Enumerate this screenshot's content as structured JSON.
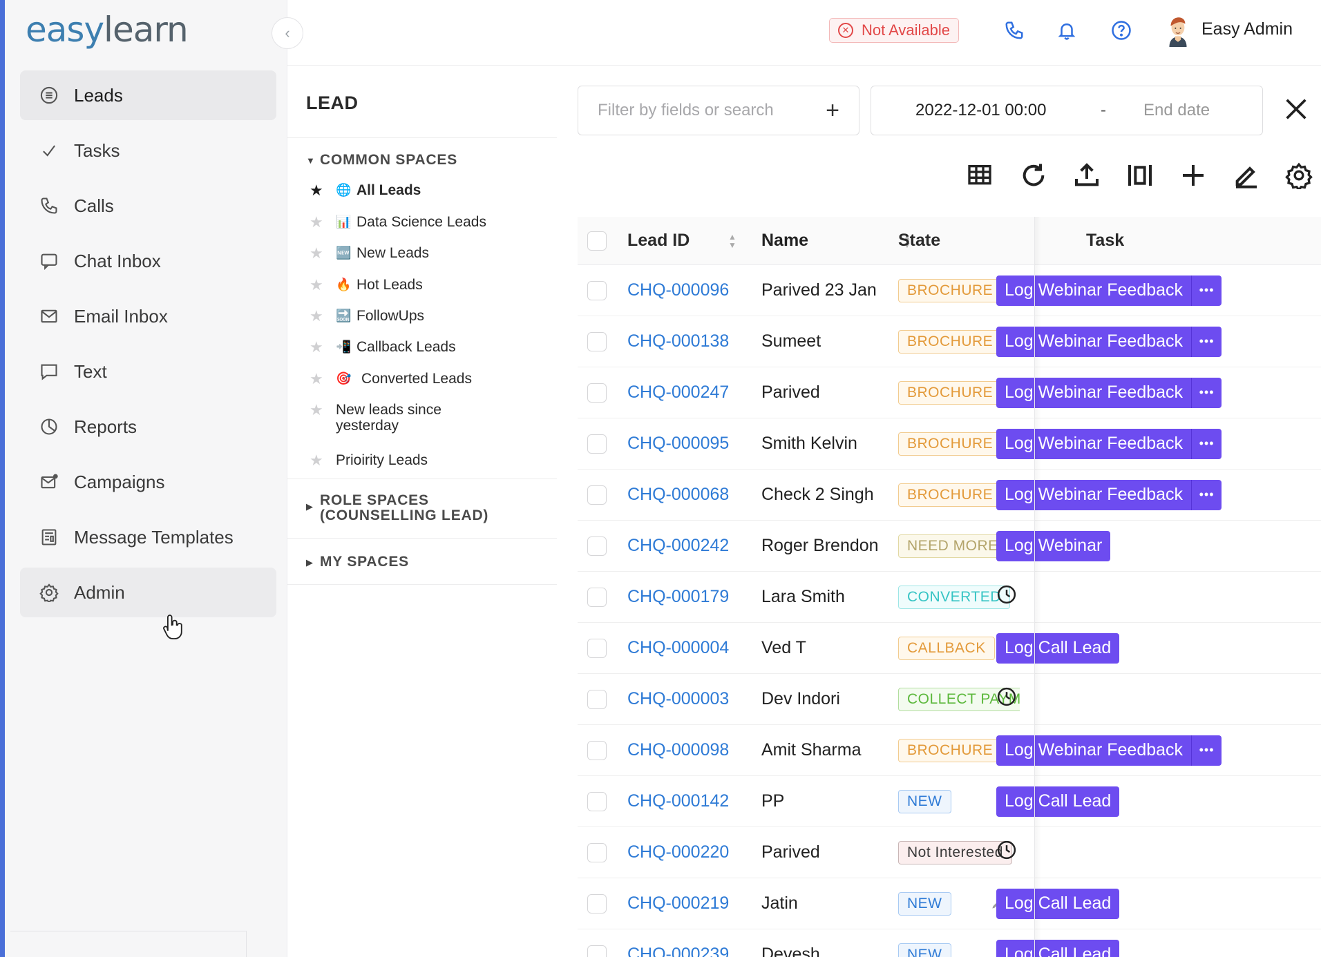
{
  "app": {
    "logo_part1": "easy",
    "logo_part2": "learn"
  },
  "header": {
    "status_label": "Not Available",
    "user_name": "Easy Admin",
    "icons": [
      "phone-icon",
      "bell-icon",
      "help-icon"
    ]
  },
  "sidebar": {
    "items": [
      {
        "label": "Leads",
        "icon": "list-icon"
      },
      {
        "label": "Tasks",
        "icon": "check-icon"
      },
      {
        "label": "Calls",
        "icon": "phone-icon"
      },
      {
        "label": "Chat Inbox",
        "icon": "chat-icon"
      },
      {
        "label": "Email Inbox",
        "icon": "mail-icon"
      },
      {
        "label": "Text",
        "icon": "message-icon"
      },
      {
        "label": "Reports",
        "icon": "pie-chart-icon"
      },
      {
        "label": "Campaigns",
        "icon": "campaign-mail-icon"
      },
      {
        "label": "Message Templates",
        "icon": "template-icon"
      },
      {
        "label": "Admin",
        "icon": "gear-icon"
      }
    ]
  },
  "spaces": {
    "title": "LEAD",
    "common_label": "COMMON SPACES",
    "items": [
      {
        "label": "All Leads",
        "emoji": "🌐"
      },
      {
        "label": "Data Science Leads",
        "emoji": "📊"
      },
      {
        "label": "New Leads",
        "emoji": "🆕"
      },
      {
        "label": "Hot Leads",
        "emoji": "🔥"
      },
      {
        "label": "FollowUps",
        "emoji": "🔜"
      },
      {
        "label": "Callback Leads",
        "emoji": "📲"
      },
      {
        "label": "Converted Leads",
        "emoji": "🎯"
      },
      {
        "label": "New leads since yesterday",
        "emoji": ""
      },
      {
        "label": "Prioirity Leads",
        "emoji": ""
      }
    ],
    "role_label_1": "ROLE SPACES",
    "role_label_2": "(COUNSELLING LEAD)",
    "my_label": "MY SPACES"
  },
  "filters": {
    "search_placeholder": "Filter by fields or search",
    "add_symbol": "+",
    "start_date": "2022-12-01 00:00",
    "separator": "-",
    "end_date_placeholder": "End date"
  },
  "toolbar": [
    "grid-icon",
    "refresh-icon",
    "upload-icon",
    "columns-icon",
    "add-icon",
    "edit-icon",
    "settings-icon"
  ],
  "table": {
    "columns": [
      "Lead ID",
      "Name",
      "State",
      "Task"
    ],
    "rows": [
      {
        "id": "CHQ-000096",
        "name": "Parived 23 Jan",
        "state": "BROCHURE SENT",
        "state_kind": "brochure",
        "task": "Log Webinar Feedback",
        "task_more": true
      },
      {
        "id": "CHQ-000138",
        "name": "Sumeet",
        "state": "BROCHURE SENT",
        "state_kind": "brochure",
        "task": "Log Webinar Feedback",
        "task_more": true
      },
      {
        "id": "CHQ-000247",
        "name": "Parived",
        "state": "BROCHURE SENT",
        "state_kind": "brochure",
        "task": "Log Webinar Feedback",
        "task_more": true
      },
      {
        "id": "CHQ-000095",
        "name": "Smith Kelvin",
        "state": "BROCHURE SENT",
        "state_kind": "brochure",
        "task": "Log Webinar Feedback",
        "task_more": true
      },
      {
        "id": "CHQ-000068",
        "name": "Check 2 Singh",
        "state": "BROCHURE SENT",
        "state_kind": "brochure",
        "task": "Log Webinar Feedback",
        "task_more": true
      },
      {
        "id": "CHQ-000242",
        "name": "Roger Brendon",
        "state": "NEED MORE TIME",
        "state_kind": "needmore",
        "task": "Log Webinar",
        "task_more": false
      },
      {
        "id": "CHQ-000179",
        "name": "Lara Smith",
        "state": "CONVERTED",
        "state_kind": "converted",
        "task": "",
        "task_more": false
      },
      {
        "id": "CHQ-000004",
        "name": "Ved T",
        "state": "CALLBACK",
        "state_kind": "callback",
        "task": "Log Call Lead",
        "task_more": false
      },
      {
        "id": "CHQ-000003",
        "name": "Dev Indori",
        "state": "COLLECT PAYMENT",
        "state_kind": "collect",
        "task": "",
        "task_more": false
      },
      {
        "id": "CHQ-000098",
        "name": "Amit Sharma",
        "state": "BROCHURE SENT",
        "state_kind": "brochure",
        "task": "Log Webinar Feedback",
        "task_more": true
      },
      {
        "id": "CHQ-000142",
        "name": "PP",
        "state": "NEW",
        "state_kind": "new",
        "task": "Log Call Lead",
        "task_more": false
      },
      {
        "id": "CHQ-000220",
        "name": "Parived",
        "state": "Not Interested",
        "state_kind": "notint",
        "task": "",
        "task_more": false
      },
      {
        "id": "CHQ-000219",
        "name": "Jatin",
        "state": "NEW",
        "state_kind": "new",
        "task": "Log Call Lead",
        "task_more": false
      },
      {
        "id": "CHQ-000239",
        "name": "Devesh",
        "state": "NEW",
        "state_kind": "new",
        "task": "Log Call Lead",
        "task_more": false
      }
    ]
  }
}
